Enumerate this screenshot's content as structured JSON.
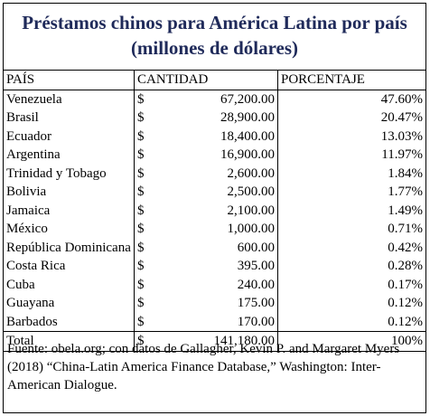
{
  "title_line1": "Préstamos chinos para América Latina por país",
  "title_line2": "(millones de dólares)",
  "headers": {
    "country": "PAÍS",
    "amount": "CANTIDAD",
    "percent": "PORCENTAJE"
  },
  "rows": [
    {
      "country": "Venezuela",
      "currency": "$",
      "amount": "67,200.00",
      "percent": "47.60%"
    },
    {
      "country": "Brasil",
      "currency": "$",
      "amount": "28,900.00",
      "percent": "20.47%"
    },
    {
      "country": "Ecuador",
      "currency": "$",
      "amount": "18,400.00",
      "percent": "13.03%"
    },
    {
      "country": "Argentina",
      "currency": "$",
      "amount": "16,900.00",
      "percent": "11.97%"
    },
    {
      "country": "Trinidad y Tobago",
      "currency": "$",
      "amount": "2,600.00",
      "percent": "1.84%"
    },
    {
      "country": "Bolivia",
      "currency": "$",
      "amount": "2,500.00",
      "percent": "1.77%"
    },
    {
      "country": "Jamaica",
      "currency": "$",
      "amount": "2,100.00",
      "percent": "1.49%"
    },
    {
      "country": "México",
      "currency": "$",
      "amount": "1,000.00",
      "percent": "0.71%"
    },
    {
      "country": "República Dominicana",
      "currency": "$",
      "amount": "600.00",
      "percent": "0.42%"
    },
    {
      "country": "Costa Rica",
      "currency": "$",
      "amount": "395.00",
      "percent": "0.28%"
    },
    {
      "country": "Cuba",
      "currency": "$",
      "amount": "240.00",
      "percent": "0.17%"
    },
    {
      "country": "Guayana",
      "currency": "$",
      "amount": "175.00",
      "percent": "0.12%"
    },
    {
      "country": "Barbados",
      "currency": "$",
      "amount": "170.00",
      "percent": "0.12%"
    }
  ],
  "total": {
    "country": "Total",
    "currency": "$",
    "amount": "141,180.00",
    "percent": "100%"
  },
  "source": "Fuente: obela.org; con datos de Gallagher, Kevin P. and Margaret Myers (2018) “China-Latin America Finance Database,” Washington: Inter-American Dialogue."
}
